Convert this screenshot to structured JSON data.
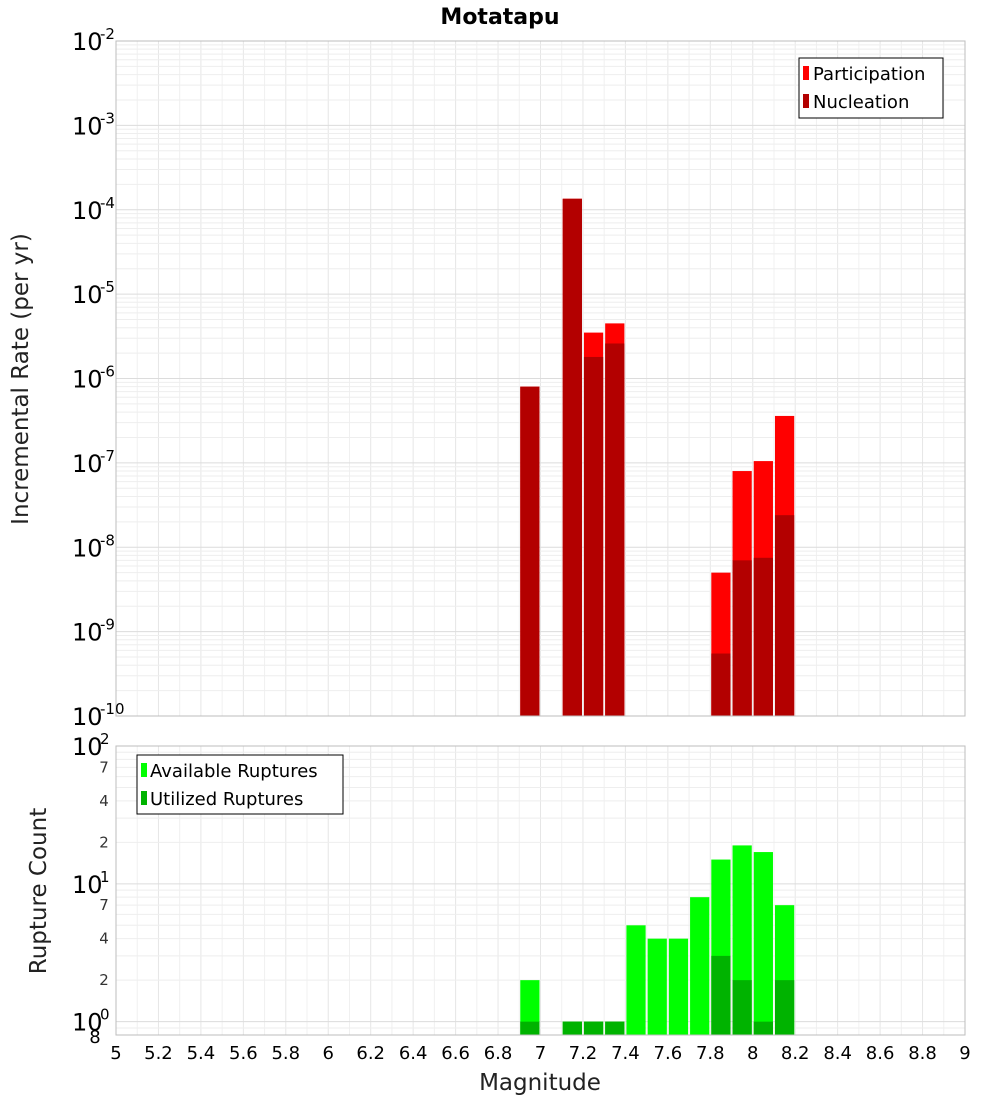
{
  "chart_data": [
    {
      "type": "bar",
      "title": "Motatapu",
      "xlabel": "",
      "ylabel": "Incremental Rate (per yr)",
      "yscale": "log",
      "ylim": [
        1e-10,
        0.01
      ],
      "xlim": [
        5,
        9
      ],
      "grid": true,
      "legend_position": "top-right",
      "y_tick_bases": [
        "10",
        "10",
        "10",
        "10",
        "10",
        "10",
        "10",
        "10",
        "10"
      ],
      "y_tick_exponents": [
        "-2",
        "-3",
        "-4",
        "-5",
        "-6",
        "-7",
        "-8",
        "-9",
        "-10"
      ],
      "series": [
        {
          "name": "Participation",
          "color": "#ff0000",
          "x": [
            6.95,
            7.15,
            7.25,
            7.35,
            7.85,
            7.95,
            8.05,
            8.15
          ],
          "values": [
            8e-07,
            0.000135,
            3.5e-06,
            4.5e-06,
            5e-09,
            8e-08,
            1.05e-07,
            3.6e-07
          ]
        },
        {
          "name": "Nucleation",
          "color": "#b30000",
          "x": [
            6.95,
            7.15,
            7.25,
            7.35,
            7.85,
            7.95,
            8.05,
            8.15
          ],
          "values": [
            8e-07,
            0.000135,
            1.8e-06,
            2.6e-06,
            5.5e-10,
            7e-09,
            7.5e-09,
            2.4e-08
          ]
        }
      ]
    },
    {
      "type": "bar",
      "title": "",
      "xlabel": "Magnitude",
      "ylabel": "Rupture Count",
      "yscale": "log",
      "ylim": [
        0.8,
        100
      ],
      "xlim": [
        5,
        9
      ],
      "grid": true,
      "legend_position": "top-left",
      "x_ticks": [
        "5",
        "5.2",
        "5.4",
        "5.6",
        "5.8",
        "6",
        "6.2",
        "6.4",
        "6.6",
        "6.8",
        "7",
        "7.2",
        "7.4",
        "7.6",
        "7.8",
        "8",
        "8.2",
        "8.4",
        "8.6",
        "8.8",
        "9"
      ],
      "y_major_bases": [
        "10",
        "10",
        "10"
      ],
      "y_major_exponents": [
        "2",
        "1",
        "0"
      ],
      "y_minor_labels": [
        "7",
        "4",
        "2",
        "7",
        "4",
        "2",
        "8"
      ],
      "series": [
        {
          "name": "Available Ruptures",
          "color": "#00ff00",
          "x": [
            6.95,
            7.15,
            7.25,
            7.35,
            7.45,
            7.55,
            7.65,
            7.75,
            7.85,
            7.95,
            8.05,
            8.15
          ],
          "values": [
            2,
            1,
            1,
            1,
            5,
            4,
            4,
            8,
            15,
            19,
            17,
            7
          ]
        },
        {
          "name": "Utilized Ruptures",
          "color": "#00b300",
          "x": [
            6.95,
            7.15,
            7.25,
            7.35,
            7.85,
            7.95,
            8.05,
            8.15
          ],
          "values": [
            1,
            1,
            1,
            1,
            3,
            2,
            1,
            2
          ]
        }
      ]
    }
  ]
}
